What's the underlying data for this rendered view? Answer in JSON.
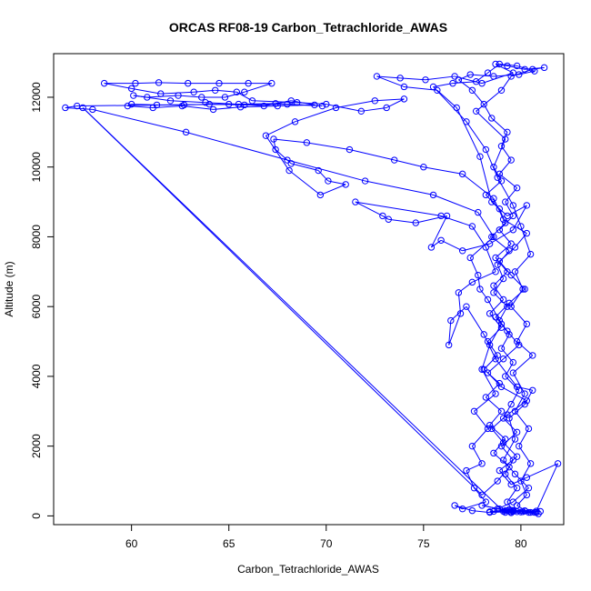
{
  "chart_data": {
    "type": "line",
    "title": "ORCAS RF08-19 Carbon_Tetrachloride_AWAS",
    "xlabel": "Carbon_Tetrachloride_AWAS",
    "ylabel": "Altitude (m)",
    "xlim": [
      56.0,
      82.2
    ],
    "ylim": [
      -250,
      13250
    ],
    "x_ticks": [
      60,
      65,
      70,
      75,
      80
    ],
    "y_ticks": [
      0,
      2000,
      4000,
      6000,
      8000,
      10000,
      12000
    ],
    "markers": "open-circle",
    "grid": false,
    "legend": "none",
    "colors": {
      "series": "#0000ff",
      "axis": "#000000"
    },
    "series": [
      {
        "points": [
          [
            80.8,
            100
          ],
          [
            80.2,
            150
          ],
          [
            79.8,
            120
          ],
          [
            80.0,
            110
          ],
          [
            79.2,
            100
          ],
          [
            78.6,
            130
          ],
          [
            79.3,
            150
          ],
          [
            78.0,
            300
          ],
          [
            78.9,
            200
          ],
          [
            79.5,
            160
          ],
          [
            80.7,
            100
          ],
          [
            79.6,
            130
          ],
          [
            79.3,
            400
          ],
          [
            79.8,
            800
          ],
          [
            79.2,
            1200
          ],
          [
            79.6,
            1600
          ],
          [
            79.0,
            2000
          ],
          [
            79.8,
            2400
          ],
          [
            79.1,
            2800
          ],
          [
            79.5,
            3200
          ],
          [
            79.9,
            3600
          ],
          [
            79.2,
            4000
          ],
          [
            79.6,
            4400
          ],
          [
            79.0,
            4800
          ],
          [
            79.4,
            5200
          ],
          [
            78.9,
            5600
          ],
          [
            79.3,
            6000
          ],
          [
            78.6,
            6400
          ],
          [
            79.1,
            6800
          ],
          [
            78.8,
            7200
          ],
          [
            79.4,
            7600
          ],
          [
            78.5,
            8000
          ],
          [
            79.2,
            8400
          ],
          [
            78.9,
            8800
          ],
          [
            78.2,
            9200
          ],
          [
            79.0,
            9600
          ],
          [
            78.6,
            10000
          ],
          [
            79.2,
            10800
          ],
          [
            77.7,
            11600
          ],
          [
            79.0,
            12200
          ],
          [
            79.5,
            12600
          ],
          [
            80.6,
            12800
          ],
          [
            81.2,
            12850
          ],
          [
            80.2,
            12800
          ],
          [
            79.3,
            12900
          ],
          [
            78.7,
            12950
          ],
          [
            79.6,
            12700
          ],
          [
            78.0,
            12400
          ],
          [
            76.6,
            12600
          ],
          [
            75.1,
            12500
          ],
          [
            73.8,
            12550
          ],
          [
            72.6,
            12600
          ],
          [
            74.0,
            12300
          ],
          [
            75.7,
            12200
          ],
          [
            76.7,
            11700
          ],
          [
            77.9,
            10300
          ],
          [
            78.5,
            9000
          ],
          [
            79.3,
            8600
          ],
          [
            80.3,
            8900
          ],
          [
            79.6,
            8200
          ],
          [
            78.4,
            7800
          ],
          [
            77.0,
            7600
          ],
          [
            75.9,
            7900
          ],
          [
            75.4,
            7700
          ],
          [
            76.2,
            8600
          ],
          [
            74.6,
            8400
          ],
          [
            73.2,
            8500
          ],
          [
            72.9,
            8600
          ],
          [
            71.5,
            9000
          ],
          [
            75.9,
            8600
          ],
          [
            77.5,
            8300
          ],
          [
            78.2,
            7700
          ],
          [
            78.7,
            7000
          ],
          [
            77.5,
            6700
          ],
          [
            76.8,
            6400
          ],
          [
            76.9,
            5800
          ],
          [
            76.3,
            4900
          ],
          [
            76.4,
            5600
          ],
          [
            77.2,
            6000
          ],
          [
            78.1,
            5200
          ],
          [
            78.7,
            4500
          ],
          [
            79.8,
            3700
          ],
          [
            80.6,
            3600
          ],
          [
            80.2,
            3200
          ],
          [
            79.4,
            2800
          ],
          [
            79.7,
            2200
          ],
          [
            79.1,
            1600
          ],
          [
            79.7,
            1200
          ],
          [
            80.4,
            800
          ],
          [
            79.6,
            400
          ],
          [
            78.8,
            200
          ],
          [
            79.2,
            150
          ],
          [
            80.1,
            120
          ],
          [
            79.4,
            180
          ],
          [
            78.4,
            120
          ],
          [
            79.6,
            160
          ],
          [
            80.8,
            140
          ],
          [
            81.9,
            1500
          ],
          [
            80.3,
            1100
          ],
          [
            79.5,
            900
          ],
          [
            78.9,
            1300
          ],
          [
            79.8,
            1700
          ],
          [
            79.1,
            2100
          ],
          [
            78.5,
            2500
          ],
          [
            79.3,
            2900
          ],
          [
            80.3,
            3300
          ],
          [
            79.0,
            3700
          ],
          [
            78.3,
            4100
          ],
          [
            79.1,
            4500
          ],
          [
            79.9,
            4900
          ],
          [
            79.3,
            5300
          ],
          [
            78.7,
            5700
          ],
          [
            79.4,
            6100
          ],
          [
            80.2,
            6500
          ],
          [
            79.5,
            6900
          ],
          [
            78.9,
            7300
          ],
          [
            79.7,
            7700
          ],
          [
            80.3,
            8100
          ],
          [
            79.1,
            8500
          ],
          [
            78.6,
            9100
          ],
          [
            77.0,
            9800
          ],
          [
            75.0,
            10000
          ],
          [
            73.5,
            10200
          ],
          [
            71.2,
            10500
          ],
          [
            69.0,
            10700
          ],
          [
            67.3,
            10800
          ],
          [
            67.4,
            10500
          ],
          [
            68.2,
            10100
          ],
          [
            69.6,
            9900
          ],
          [
            70.1,
            9600
          ],
          [
            71.0,
            9500
          ],
          [
            69.7,
            9200
          ],
          [
            68.1,
            9900
          ],
          [
            66.9,
            10900
          ],
          [
            68.4,
            11300
          ],
          [
            70.5,
            11700
          ],
          [
            72.5,
            11900
          ],
          [
            74.0,
            11950
          ],
          [
            73.1,
            11700
          ],
          [
            71.8,
            11600
          ],
          [
            70.0,
            11800
          ],
          [
            68.5,
            11850
          ],
          [
            66.2,
            11900
          ],
          [
            65.4,
            12150
          ],
          [
            64.3,
            12200
          ],
          [
            63.2,
            12150
          ],
          [
            61.5,
            12100
          ],
          [
            60.0,
            12250
          ],
          [
            58.6,
            12400
          ],
          [
            60.2,
            12400
          ],
          [
            61.4,
            12420
          ],
          [
            62.9,
            12400
          ],
          [
            64.5,
            12400
          ],
          [
            66.0,
            12400
          ],
          [
            67.2,
            12400
          ],
          [
            65.8,
            12150
          ],
          [
            64.8,
            12000
          ],
          [
            63.6,
            12000
          ],
          [
            62.4,
            12050
          ],
          [
            60.8,
            12000
          ],
          [
            60.1,
            12050
          ],
          [
            62.0,
            11900
          ],
          [
            63.8,
            11850
          ],
          [
            65.5,
            11800
          ],
          [
            66.8,
            11750
          ],
          [
            68.2,
            11900
          ],
          [
            69.4,
            11780
          ],
          [
            67.5,
            11750
          ],
          [
            65.6,
            11720
          ],
          [
            64.2,
            11650
          ],
          [
            62.6,
            11750
          ],
          [
            61.1,
            11700
          ],
          [
            59.8,
            11750
          ],
          [
            60.0,
            11800
          ],
          [
            61.3,
            11780
          ],
          [
            62.7,
            11780
          ],
          [
            64.0,
            11800
          ],
          [
            65.8,
            11780
          ],
          [
            68.0,
            11800
          ],
          [
            69.8,
            11750
          ],
          [
            67.4,
            11820
          ],
          [
            65.0,
            11800
          ],
          [
            57.2,
            11750
          ],
          [
            56.6,
            11700
          ],
          [
            58.0,
            11650
          ],
          [
            62.8,
            11000
          ],
          [
            68.0,
            10200
          ],
          [
            72.0,
            9600
          ],
          [
            75.5,
            9200
          ],
          [
            77.8,
            8700
          ],
          [
            78.6,
            8000
          ],
          [
            77.4,
            7400
          ],
          [
            77.8,
            6900
          ],
          [
            77.9,
            6500
          ],
          [
            78.3,
            6200
          ],
          [
            79.0,
            5500
          ],
          [
            78.4,
            4900
          ],
          [
            78.0,
            4200
          ],
          [
            78.7,
            3500
          ],
          [
            77.6,
            3000
          ],
          [
            78.3,
            2500
          ],
          [
            77.5,
            2000
          ],
          [
            78.0,
            1500
          ],
          [
            77.2,
            1300
          ],
          [
            77.6,
            800
          ],
          [
            78.2,
            400
          ],
          [
            77.0,
            200
          ],
          [
            76.6,
            300
          ],
          [
            77.5,
            150
          ],
          [
            78.4,
            100
          ],
          [
            79.5,
            120
          ],
          [
            80.5,
            100
          ],
          [
            81.0,
            130
          ],
          [
            80.2,
            140
          ],
          [
            79.1,
            130
          ],
          [
            57.5,
            11700
          ],
          [
            78.0,
            600
          ],
          [
            78.8,
            1000
          ],
          [
            79.4,
            1400
          ],
          [
            78.6,
            1800
          ],
          [
            79.2,
            2200
          ],
          [
            78.4,
            2600
          ],
          [
            79.0,
            3000
          ],
          [
            78.2,
            3400
          ],
          [
            78.9,
            3800
          ],
          [
            78.1,
            4200
          ],
          [
            78.8,
            4600
          ],
          [
            78.3,
            5000
          ],
          [
            79.0,
            5400
          ],
          [
            78.4,
            5800
          ],
          [
            79.1,
            6200
          ],
          [
            78.6,
            6600
          ],
          [
            79.3,
            7000
          ],
          [
            78.7,
            7400
          ],
          [
            79.5,
            7800
          ],
          [
            78.9,
            8200
          ],
          [
            79.6,
            8600
          ],
          [
            79.2,
            9000
          ],
          [
            79.8,
            9400
          ],
          [
            78.9,
            9800
          ],
          [
            79.5,
            10200
          ],
          [
            79.0,
            10600
          ],
          [
            79.3,
            11000
          ],
          [
            78.5,
            11400
          ],
          [
            78.1,
            11800
          ],
          [
            77.5,
            12200
          ],
          [
            76.8,
            12500
          ],
          [
            77.4,
            12650
          ],
          [
            78.6,
            12600
          ],
          [
            79.9,
            12650
          ],
          [
            80.7,
            12750
          ],
          [
            79.8,
            12900
          ],
          [
            78.9,
            12950
          ],
          [
            78.3,
            12700
          ],
          [
            77.7,
            12450
          ],
          [
            76.5,
            12400
          ],
          [
            75.5,
            12300
          ],
          [
            77.2,
            11300
          ],
          [
            78.2,
            10500
          ],
          [
            78.8,
            9700
          ],
          [
            79.6,
            8900
          ],
          [
            80.0,
            8300
          ],
          [
            80.5,
            7500
          ],
          [
            79.7,
            7000
          ],
          [
            80.1,
            6500
          ],
          [
            79.5,
            6000
          ],
          [
            80.3,
            5500
          ],
          [
            79.8,
            5000
          ],
          [
            80.6,
            4600
          ],
          [
            79.6,
            4100
          ],
          [
            80.2,
            3500
          ],
          [
            79.7,
            3000
          ],
          [
            80.4,
            2500
          ],
          [
            79.9,
            2000
          ],
          [
            80.5,
            1500
          ],
          [
            80.0,
            1000
          ],
          [
            80.3,
            600
          ],
          [
            79.8,
            300
          ],
          [
            80.4,
            100
          ],
          [
            80.9,
            60
          ],
          [
            79.5,
            90
          ]
        ]
      }
    ]
  }
}
